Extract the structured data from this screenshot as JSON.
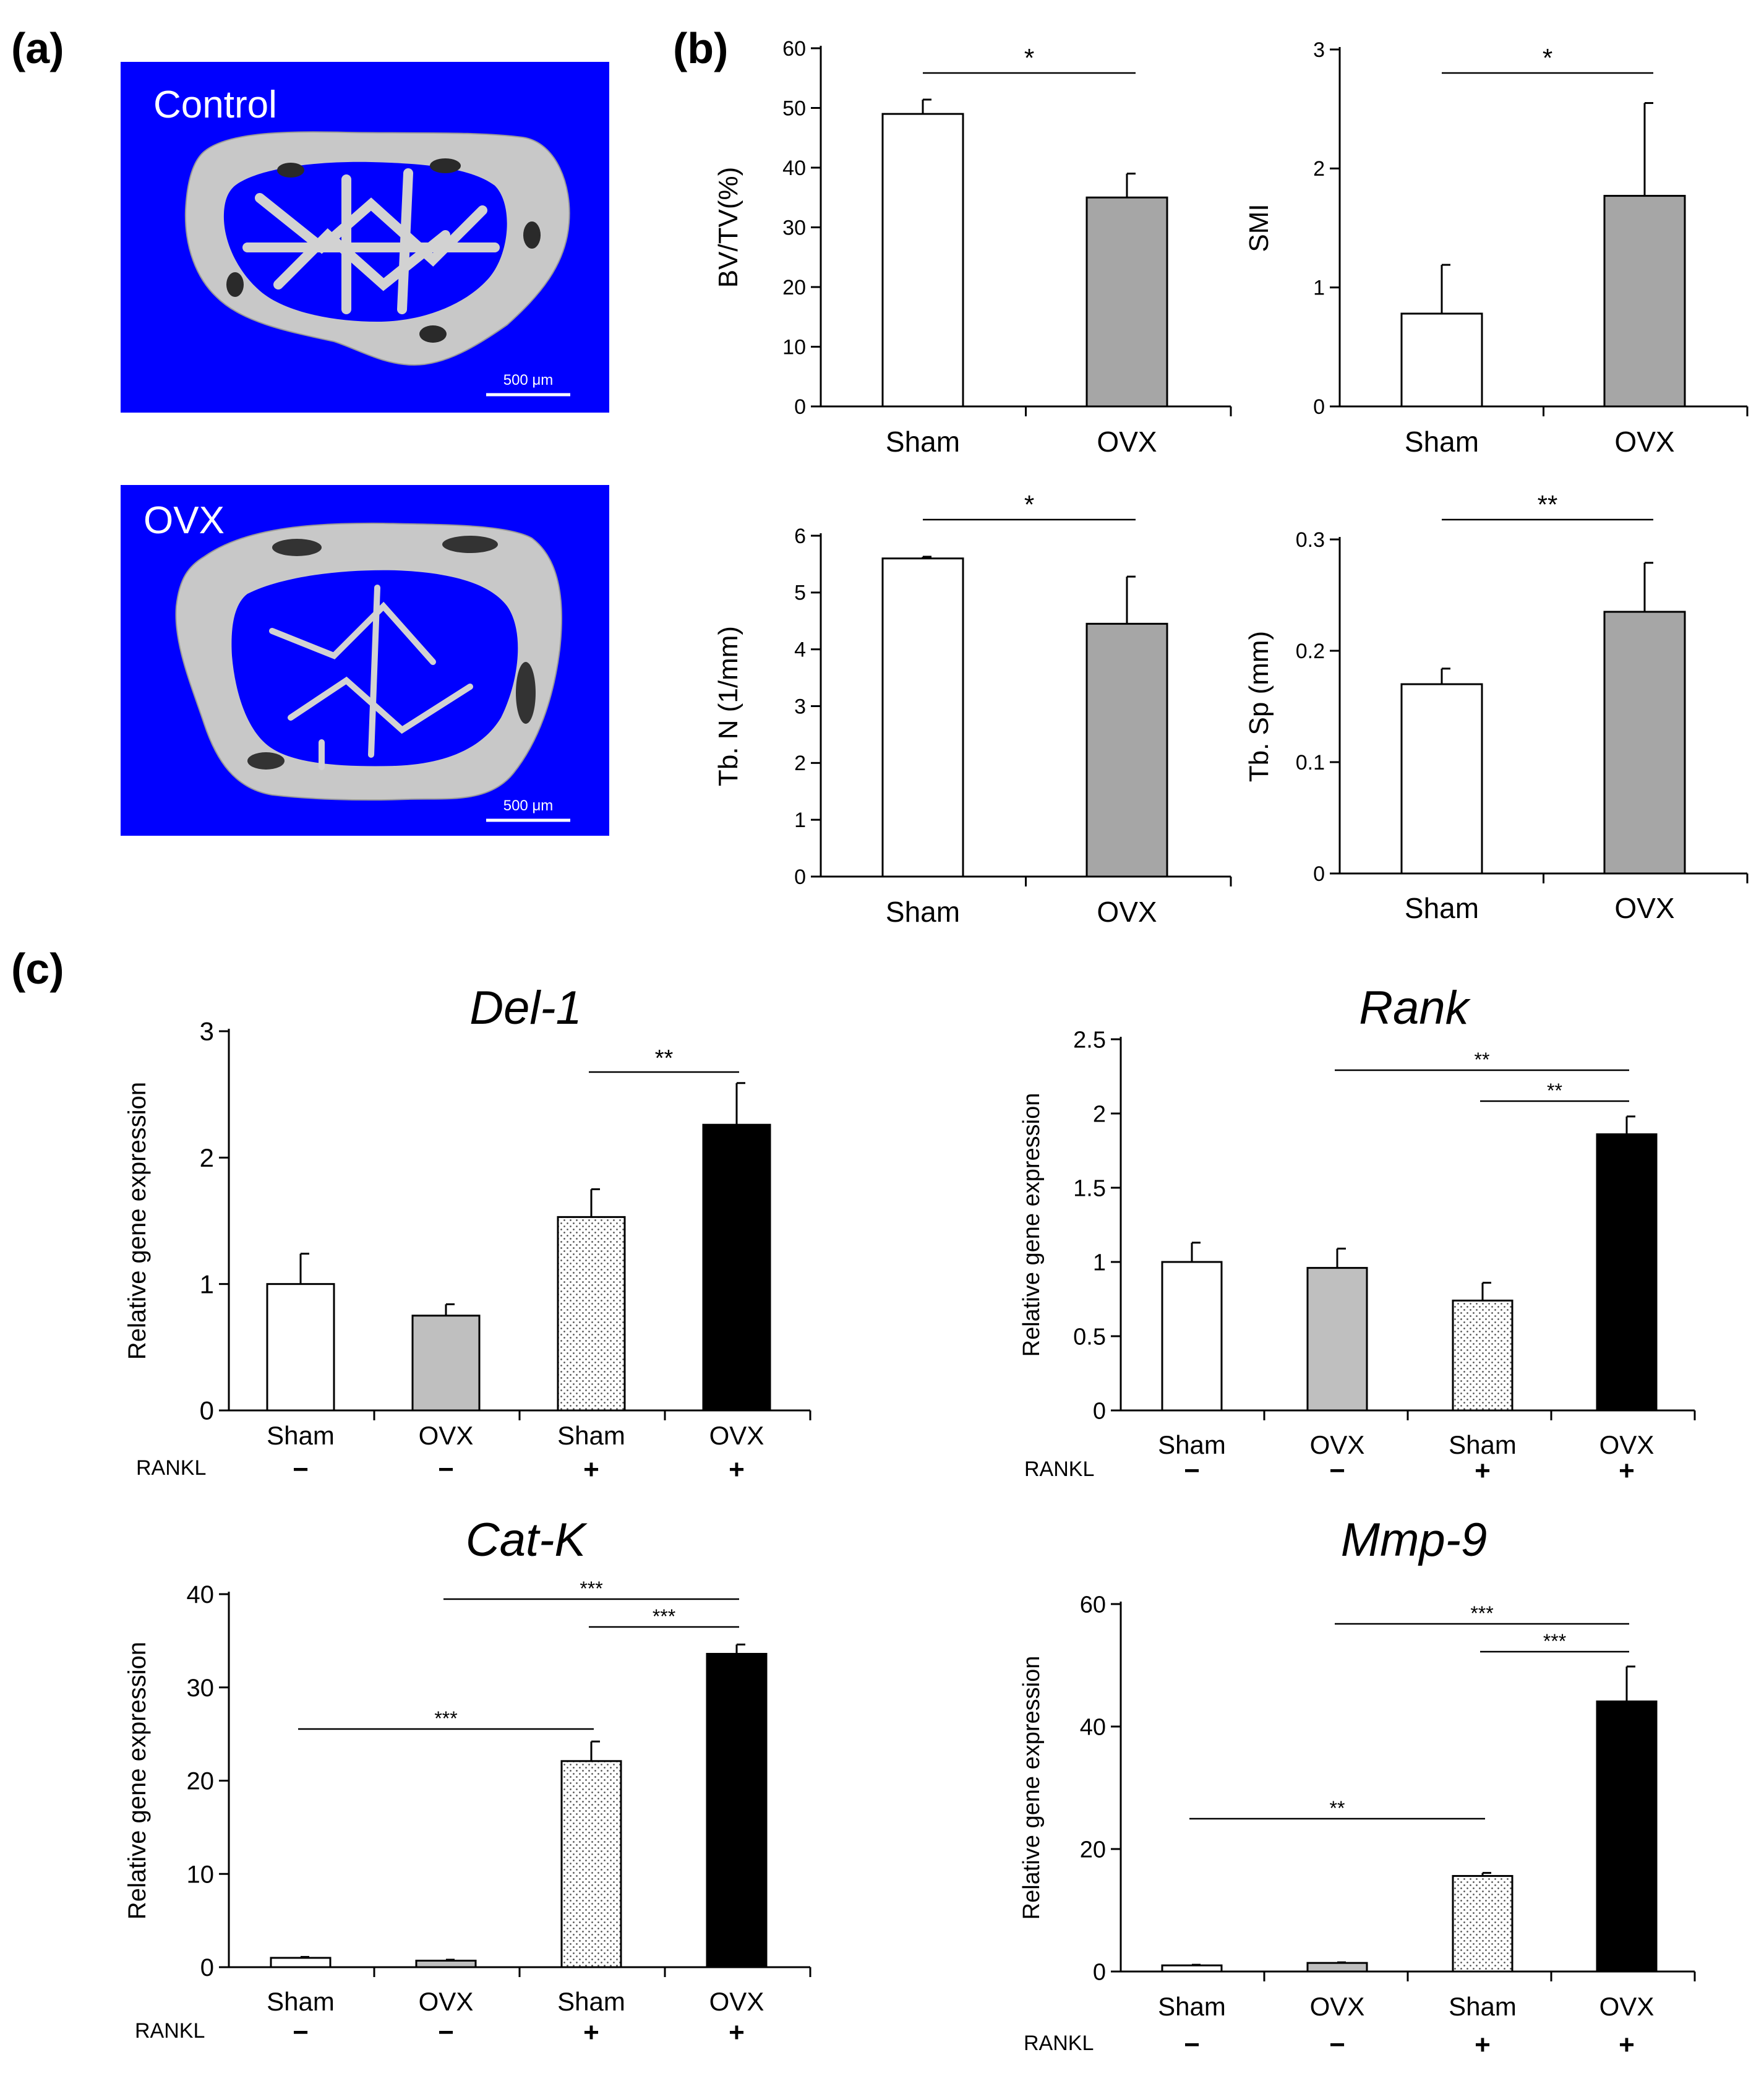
{
  "panel_labels": {
    "a": "(a)",
    "b": "(b)",
    "c": "(c)"
  },
  "panel_a": {
    "images": [
      {
        "label": "Control",
        "scale_bar": "500 μm",
        "background": "#0000ff"
      },
      {
        "label": "OVX",
        "scale_bar": "500 μm",
        "background": "#0000ff"
      }
    ]
  },
  "colors": {
    "sham": "#ffffff",
    "ovx_b": "#a6a6a6",
    "ovx_c": "#bfbfbf",
    "sham_rankl": "dotted",
    "ovx_rankl": "#000000",
    "image_bg": "#0000ff"
  },
  "chart_data": [
    {
      "id": "bvtv",
      "type": "bar",
      "title": "",
      "ylabel": "BV/TV(%)",
      "xlabel": "",
      "categories": [
        "Sham",
        "OVX"
      ],
      "values": [
        49,
        35
      ],
      "errors": [
        2.4,
        4
      ],
      "ylim": [
        0,
        60
      ],
      "yticks": [
        "0",
        "10",
        "20",
        "30",
        "40",
        "50",
        "60"
      ],
      "significance": [
        {
          "from": 0,
          "to": 1,
          "label": "*"
        }
      ]
    },
    {
      "id": "smi",
      "type": "bar",
      "title": "",
      "ylabel": "SMI",
      "xlabel": "",
      "categories": [
        "Sham",
        "OVX"
      ],
      "values": [
        0.78,
        1.77
      ],
      "errors": [
        0.41,
        0.78
      ],
      "ylim": [
        0,
        3
      ],
      "yticks": [
        "0",
        "1",
        "2",
        "3"
      ],
      "significance": [
        {
          "from": 0,
          "to": 1,
          "label": "*"
        }
      ]
    },
    {
      "id": "tbn",
      "type": "bar",
      "title": "",
      "ylabel": "Tb. N (1/mm)",
      "xlabel": "",
      "categories": [
        "Sham",
        "OVX"
      ],
      "values": [
        5.6,
        4.45
      ],
      "errors": [
        0.03,
        0.83
      ],
      "ylim": [
        0,
        6
      ],
      "yticks": [
        "0",
        "1",
        "2",
        "3",
        "4",
        "5",
        "6"
      ],
      "significance": [
        {
          "from": 0,
          "to": 1,
          "label": "*"
        }
      ]
    },
    {
      "id": "tbsp",
      "type": "bar",
      "title": "",
      "ylabel": "Tb. Sp (mm)",
      "xlabel": "",
      "categories": [
        "Sham",
        "OVX"
      ],
      "values": [
        0.17,
        0.235
      ],
      "errors": [
        0.014,
        0.044
      ],
      "ylim": [
        0,
        0.3
      ],
      "yticks": [
        "0",
        "0.1",
        "0.2",
        "0.3"
      ],
      "significance": [
        {
          "from": 0,
          "to": 1,
          "label": "**"
        }
      ]
    },
    {
      "id": "del1",
      "type": "bar",
      "title": "Del-1",
      "ylabel": "Relative gene expression",
      "xlabel": "",
      "row_label": "RANKL",
      "rankl": [
        "−",
        "−",
        "+",
        "+"
      ],
      "categories": [
        "Sham",
        "OVX",
        "Sham",
        "OVX"
      ],
      "values": [
        1.0,
        0.75,
        1.53,
        2.26
      ],
      "errors": [
        0.24,
        0.09,
        0.22,
        0.33
      ],
      "ylim": [
        0,
        3
      ],
      "yticks": [
        "0",
        "1",
        "2",
        "3"
      ],
      "significance": [
        {
          "from": 2,
          "to": 3,
          "label": "**"
        }
      ]
    },
    {
      "id": "rank",
      "type": "bar",
      "title": "Rank",
      "ylabel": "Relative gene expression",
      "xlabel": "",
      "row_label": "RANKL",
      "rankl": [
        "−",
        "−",
        "+",
        "+"
      ],
      "categories": [
        "Sham",
        "OVX",
        "Sham",
        "OVX"
      ],
      "values": [
        1.0,
        0.96,
        0.74,
        1.86
      ],
      "errors": [
        0.13,
        0.13,
        0.12,
        0.12
      ],
      "ylim": [
        0,
        2.5
      ],
      "yticks": [
        "0",
        "0.5",
        "1",
        "1.5",
        "2",
        "2.5"
      ],
      "significance": [
        {
          "from": 1,
          "to": 3,
          "label": "**"
        },
        {
          "from": 2,
          "to": 3,
          "label": "**"
        }
      ]
    },
    {
      "id": "catk",
      "type": "bar",
      "title": "Cat-K",
      "ylabel": "Relative gene expression",
      "xlabel": "",
      "row_label": "RANKL",
      "rankl": [
        "−",
        "−",
        "+",
        "+"
      ],
      "categories": [
        "Sham",
        "OVX",
        "Sham",
        "OVX"
      ],
      "values": [
        1.0,
        0.7,
        22.1,
        33.6
      ],
      "errors": [
        0.1,
        0.1,
        2.1,
        1.0
      ],
      "ylim": [
        0,
        40
      ],
      "yticks": [
        "0",
        "10",
        "20",
        "30",
        "40"
      ],
      "significance": [
        {
          "from": 1,
          "to": 3,
          "label": "***"
        },
        {
          "from": 2,
          "to": 3,
          "label": "***"
        },
        {
          "from": 0,
          "to": 2,
          "label": "***"
        }
      ]
    },
    {
      "id": "mmp9",
      "type": "bar",
      "title": "Mmp-9",
      "ylabel": "Relative gene expression",
      "xlabel": "",
      "row_label": "RANKL",
      "rankl": [
        "−",
        "−",
        "+",
        "+"
      ],
      "categories": [
        "Sham",
        "OVX",
        "Sham",
        "OVX"
      ],
      "values": [
        1.0,
        1.4,
        15.6,
        44.1
      ],
      "errors": [
        0.1,
        0.1,
        0.5,
        5.7
      ],
      "ylim": [
        0,
        60
      ],
      "yticks": [
        "0",
        "20",
        "40",
        "60"
      ],
      "significance": [
        {
          "from": 1,
          "to": 3,
          "label": "***"
        },
        {
          "from": 2,
          "to": 3,
          "label": "***"
        },
        {
          "from": 0,
          "to": 2,
          "label": "**"
        }
      ]
    }
  ]
}
